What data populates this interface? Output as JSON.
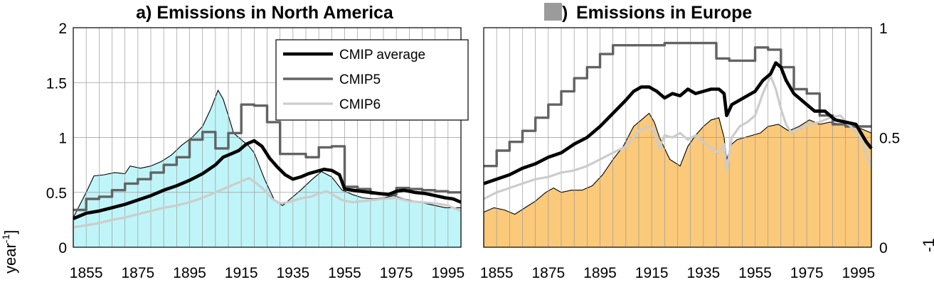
{
  "chart_data": [
    {
      "type": "line",
      "id": "na",
      "title": "a) Emissions in North America",
      "xlim": [
        1850,
        2000
      ],
      "ylim": [
        0,
        2
      ],
      "xticks": [
        "1855",
        "1875",
        "1895",
        "1915",
        "1935",
        "1955",
        "1975",
        "1995"
      ],
      "yticks": [
        "0",
        "0.5",
        "1",
        "1.5",
        "2"
      ],
      "ylabel": "year",
      "ylabel_sup": "-1",
      "ylabel_bracket": "]",
      "fill_color": "#bff5f8",
      "legend": {
        "placement": "top-right",
        "entries": [
          "CMIP average",
          "CMIP5",
          "CMIP6"
        ]
      },
      "observed_area": {
        "x": [
          1850,
          1855,
          1858,
          1862,
          1866,
          1870,
          1872,
          1876,
          1880,
          1884,
          1888,
          1892,
          1896,
          1900,
          1903,
          1906,
          1908,
          1910,
          1912,
          1915,
          1918,
          1920,
          1924,
          1928,
          1931,
          1934,
          1938,
          1942,
          1946,
          1950,
          1954,
          1958,
          1962,
          1966,
          1970,
          1974,
          1978,
          1982,
          1986,
          1990,
          1994,
          1998,
          2000
        ],
        "y": [
          0.27,
          0.5,
          0.65,
          0.66,
          0.68,
          0.67,
          0.74,
          0.72,
          0.74,
          0.78,
          0.84,
          0.93,
          1.0,
          1.1,
          1.25,
          1.43,
          1.35,
          1.2,
          1.04,
          0.98,
          0.92,
          0.86,
          0.62,
          0.42,
          0.38,
          0.44,
          0.52,
          0.61,
          0.69,
          0.64,
          0.52,
          0.48,
          0.45,
          0.44,
          0.45,
          0.47,
          0.44,
          0.42,
          0.4,
          0.38,
          0.36,
          0.36,
          0.36
        ]
      },
      "series": [
        {
          "name": "CMIP average",
          "color": "#000000",
          "width": 4.6,
          "x": [
            1850,
            1855,
            1860,
            1865,
            1870,
            1875,
            1880,
            1885,
            1890,
            1895,
            1900,
            1905,
            1908,
            1911,
            1914,
            1917,
            1920,
            1923,
            1926,
            1929,
            1932,
            1935,
            1938,
            1941,
            1944,
            1947,
            1950,
            1953,
            1955,
            1958,
            1961,
            1965,
            1968,
            1972,
            1975,
            1978,
            1982,
            1986,
            1990,
            1994,
            1997,
            2000
          ],
          "y": [
            0.26,
            0.31,
            0.33,
            0.36,
            0.39,
            0.43,
            0.47,
            0.52,
            0.56,
            0.61,
            0.67,
            0.75,
            0.82,
            0.85,
            0.88,
            0.94,
            0.97,
            0.92,
            0.81,
            0.73,
            0.66,
            0.62,
            0.64,
            0.67,
            0.69,
            0.71,
            0.7,
            0.66,
            0.53,
            0.52,
            0.51,
            0.5,
            0.49,
            0.48,
            0.51,
            0.52,
            0.5,
            0.49,
            0.47,
            0.45,
            0.44,
            0.41
          ]
        },
        {
          "name": "CMIP5",
          "color": "#636363",
          "width": 3.4,
          "x": [
            1850,
            1855,
            1855,
            1860,
            1860,
            1865,
            1865,
            1870,
            1870,
            1875,
            1875,
            1880,
            1880,
            1885,
            1885,
            1890,
            1890,
            1895,
            1895,
            1900,
            1900,
            1905,
            1905,
            1910,
            1910,
            1915,
            1915,
            1920,
            1920,
            1925,
            1925,
            1930,
            1930,
            1935,
            1935,
            1940,
            1940,
            1945,
            1945,
            1950,
            1950,
            1955,
            1955,
            1960,
            1960,
            1965,
            1965,
            1970,
            1970,
            1975,
            1975,
            1980,
            1980,
            1985,
            1985,
            1990,
            1990,
            1995,
            1995,
            2000
          ],
          "y": [
            0.34,
            0.34,
            0.44,
            0.44,
            0.46,
            0.46,
            0.52,
            0.52,
            0.58,
            0.58,
            0.62,
            0.62,
            0.68,
            0.68,
            0.75,
            0.75,
            0.82,
            0.82,
            0.98,
            0.98,
            1.05,
            1.05,
            0.9,
            0.9,
            1.04,
            1.04,
            1.3,
            1.3,
            1.29,
            1.29,
            1.14,
            1.14,
            0.85,
            0.85,
            0.85,
            0.85,
            0.82,
            0.82,
            0.91,
            0.91,
            0.92,
            0.92,
            0.55,
            0.55,
            0.53,
            0.53,
            0.49,
            0.49,
            0.48,
            0.48,
            0.54,
            0.54,
            0.53,
            0.53,
            0.52,
            0.52,
            0.51,
            0.51,
            0.5,
            0.5
          ]
        },
        {
          "name": "CMIP6",
          "color": "#cccccc",
          "width": 3.2,
          "x": [
            1850,
            1855,
            1860,
            1865,
            1870,
            1875,
            1880,
            1885,
            1890,
            1895,
            1900,
            1905,
            1910,
            1915,
            1918,
            1921,
            1924,
            1927,
            1930,
            1933,
            1936,
            1939,
            1942,
            1945,
            1948,
            1951,
            1954,
            1958,
            1962,
            1966,
            1970,
            1975,
            1980,
            1985,
            1990,
            1995,
            2000
          ],
          "y": [
            0.18,
            0.2,
            0.22,
            0.25,
            0.27,
            0.3,
            0.33,
            0.36,
            0.38,
            0.41,
            0.45,
            0.5,
            0.55,
            0.6,
            0.63,
            0.58,
            0.52,
            0.44,
            0.4,
            0.41,
            0.43,
            0.45,
            0.46,
            0.49,
            0.51,
            0.47,
            0.43,
            0.41,
            0.42,
            0.43,
            0.44,
            0.45,
            0.42,
            0.41,
            0.4,
            0.38,
            0.33
          ]
        }
      ]
    },
    {
      "type": "line",
      "id": "eu",
      "title": "Emissions in Europe",
      "title_prefix": ")",
      "xlim": [
        1850,
        2000
      ],
      "ylim": [
        0,
        1
      ],
      "xticks": [
        "1855",
        "1875",
        "1895",
        "1915",
        "1935",
        "1955",
        "1975",
        "1995"
      ],
      "yticks": [
        "0",
        "0.5",
        "1"
      ],
      "ylabel_fragment": "-1",
      "fill_color": "#fbc97a",
      "observed_area": {
        "x": [
          1850,
          1854,
          1858,
          1862,
          1866,
          1870,
          1874,
          1877,
          1880,
          1884,
          1888,
          1892,
          1896,
          1900,
          1904,
          1908,
          1911,
          1914,
          1916,
          1918,
          1920,
          1922,
          1926,
          1929,
          1932,
          1935,
          1938,
          1941,
          1943,
          1944,
          1946,
          1948,
          1951,
          1954,
          1957,
          1960,
          1964,
          1968,
          1972,
          1976,
          1980,
          1984,
          1988,
          1992,
          1996,
          2000
        ],
        "y": [
          0.16,
          0.18,
          0.17,
          0.15,
          0.18,
          0.21,
          0.25,
          0.27,
          0.25,
          0.26,
          0.26,
          0.28,
          0.33,
          0.4,
          0.46,
          0.55,
          0.58,
          0.61,
          0.57,
          0.5,
          0.45,
          0.4,
          0.37,
          0.46,
          0.51,
          0.55,
          0.58,
          0.59,
          0.5,
          0.4,
          0.47,
          0.49,
          0.5,
          0.51,
          0.52,
          0.55,
          0.56,
          0.53,
          0.55,
          0.58,
          0.56,
          0.57,
          0.56,
          0.55,
          0.54,
          0.52
        ]
      },
      "series": [
        {
          "name": "CMIP average",
          "color": "#000000",
          "width": 4.6,
          "x": [
            1850,
            1855,
            1860,
            1865,
            1870,
            1875,
            1880,
            1885,
            1890,
            1895,
            1900,
            1905,
            1908,
            1911,
            1914,
            1917,
            1920,
            1923,
            1926,
            1929,
            1932,
            1935,
            1938,
            1941,
            1943,
            1944,
            1946,
            1949,
            1952,
            1955,
            1958,
            1961,
            1963,
            1965,
            1967,
            1970,
            1974,
            1978,
            1982,
            1986,
            1990,
            1994,
            1998,
            2000
          ],
          "y": [
            0.29,
            0.31,
            0.33,
            0.36,
            0.38,
            0.41,
            0.43,
            0.47,
            0.5,
            0.55,
            0.61,
            0.67,
            0.71,
            0.73,
            0.73,
            0.71,
            0.68,
            0.7,
            0.69,
            0.72,
            0.7,
            0.71,
            0.72,
            0.72,
            0.7,
            0.6,
            0.65,
            0.67,
            0.69,
            0.71,
            0.76,
            0.79,
            0.84,
            0.82,
            0.76,
            0.7,
            0.66,
            0.62,
            0.62,
            0.58,
            0.57,
            0.56,
            0.48,
            0.45
          ]
        },
        {
          "name": "CMIP5",
          "color": "#636363",
          "width": 3.4,
          "x": [
            1850,
            1855,
            1855,
            1860,
            1860,
            1865,
            1865,
            1870,
            1870,
            1875,
            1875,
            1880,
            1880,
            1885,
            1885,
            1890,
            1890,
            1895,
            1895,
            1900,
            1900,
            1905,
            1905,
            1910,
            1910,
            1915,
            1915,
            1920,
            1920,
            1925,
            1925,
            1930,
            1930,
            1935,
            1935,
            1940,
            1940,
            1945,
            1945,
            1950,
            1950,
            1955,
            1955,
            1960,
            1960,
            1965,
            1965,
            1970,
            1970,
            1975,
            1975,
            1980,
            1980,
            1985,
            1985,
            1990,
            1990,
            1995,
            1995,
            2000
          ],
          "y": [
            0.37,
            0.37,
            0.44,
            0.44,
            0.48,
            0.48,
            0.53,
            0.53,
            0.59,
            0.59,
            0.65,
            0.65,
            0.71,
            0.71,
            0.77,
            0.77,
            0.82,
            0.82,
            0.88,
            0.88,
            0.92,
            0.92,
            0.92,
            0.92,
            0.92,
            0.92,
            0.92,
            0.92,
            0.93,
            0.93,
            0.93,
            0.93,
            0.93,
            0.93,
            0.93,
            0.93,
            0.86,
            0.86,
            0.85,
            0.85,
            0.85,
            0.85,
            0.91,
            0.91,
            0.9,
            0.9,
            0.82,
            0.82,
            0.72,
            0.72,
            0.7,
            0.7,
            0.6,
            0.6,
            0.56,
            0.56,
            0.55,
            0.55,
            0.55,
            0.55
          ]
        },
        {
          "name": "CMIP6",
          "color": "#cccccc",
          "width": 3.2,
          "x": [
            1850,
            1855,
            1860,
            1865,
            1870,
            1875,
            1880,
            1885,
            1890,
            1895,
            1900,
            1905,
            1910,
            1914,
            1916,
            1918,
            1920,
            1923,
            1926,
            1929,
            1932,
            1935,
            1938,
            1941,
            1943,
            1944,
            1946,
            1949,
            1952,
            1955,
            1958,
            1961,
            1963,
            1965,
            1967,
            1969,
            1972,
            1976,
            1980,
            1984,
            1988,
            1992,
            1996,
            2000
          ],
          "y": [
            0.22,
            0.25,
            0.27,
            0.29,
            0.31,
            0.32,
            0.34,
            0.35,
            0.37,
            0.4,
            0.43,
            0.46,
            0.53,
            0.55,
            0.53,
            0.45,
            0.51,
            0.5,
            0.52,
            0.49,
            0.51,
            0.48,
            0.45,
            0.43,
            0.47,
            0.35,
            0.5,
            0.55,
            0.57,
            0.6,
            0.7,
            0.78,
            0.72,
            0.63,
            0.56,
            0.52,
            0.54,
            0.56,
            0.57,
            0.59,
            0.6,
            0.55,
            0.5,
            0.36
          ]
        }
      ]
    }
  ]
}
